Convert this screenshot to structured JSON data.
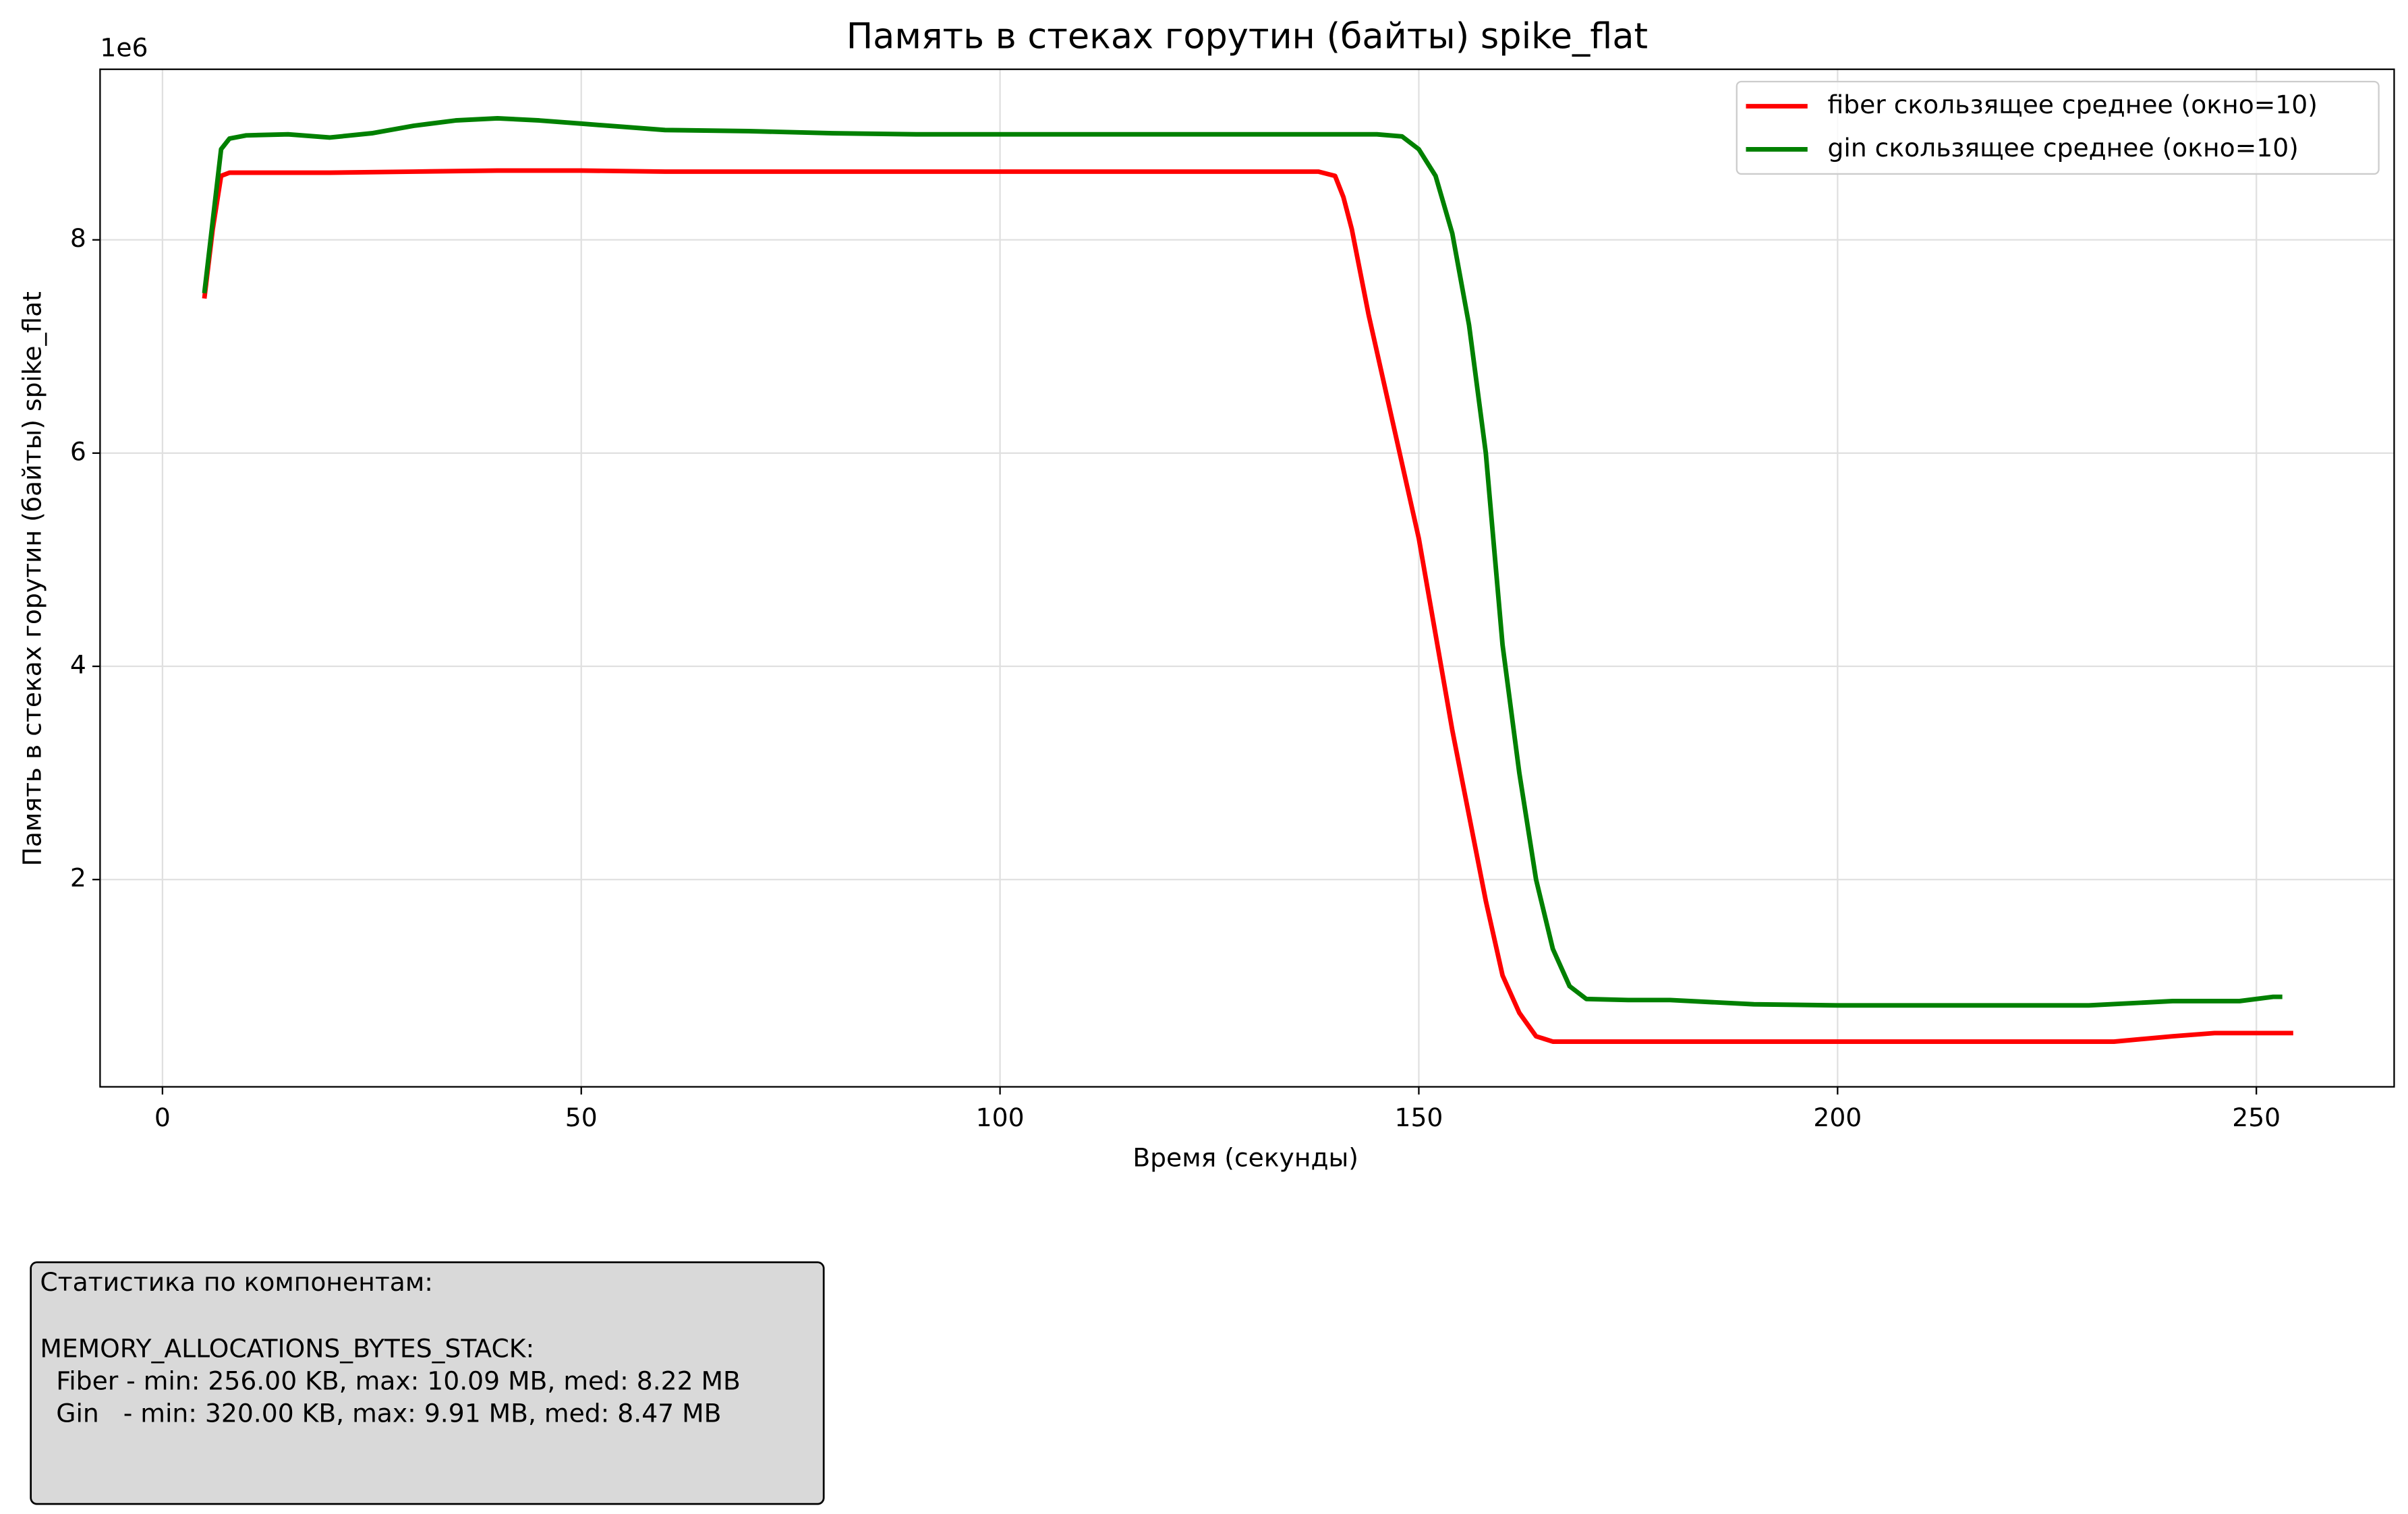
{
  "chart_data": {
    "type": "line",
    "title": "Память в стеках горутин (байты) spike_flat",
    "x_label": "Время (секунды)",
    "y_label": "Память в стеках горутин (байты) spike_flat",
    "y_offset_label": "1e6",
    "xlim": [
      -7.45,
      266.45
    ],
    "ylim": [
      0.056,
      9.6
    ],
    "xticks": [
      0,
      50,
      100,
      150,
      200,
      250
    ],
    "yticks": [
      2,
      4,
      6,
      8
    ],
    "grid": true,
    "legend": "upper right",
    "series": [
      {
        "name": "fiber скользящее среднее (окно=10)",
        "color": "#ff0000",
        "x": [
          5,
          6,
          7,
          8,
          10,
          20,
          30,
          40,
          50,
          60,
          100,
          138,
          140,
          141,
          142,
          144,
          146,
          148,
          150,
          152,
          154,
          156,
          158,
          160,
          162,
          164,
          166,
          180,
          200,
          220,
          233,
          240,
          245,
          254.4
        ],
        "values": [
          7.45,
          8.1,
          8.6,
          8.63,
          8.63,
          8.63,
          8.64,
          8.65,
          8.65,
          8.64,
          8.64,
          8.64,
          8.6,
          8.4,
          8.1,
          7.3,
          6.6,
          5.9,
          5.2,
          4.3,
          3.4,
          2.6,
          1.8,
          1.1,
          0.75,
          0.53,
          0.48,
          0.48,
          0.48,
          0.48,
          0.48,
          0.53,
          0.56,
          0.56
        ]
      },
      {
        "name": "gin скользящее среднее (окно=10)",
        "color": "#008000",
        "x": [
          5,
          7,
          8,
          10,
          15,
          20,
          25,
          30,
          35,
          40,
          45,
          50,
          55,
          60,
          70,
          80,
          90,
          145,
          148,
          150,
          152,
          154,
          156,
          158,
          160,
          162,
          164,
          166,
          168,
          170,
          175,
          180,
          185,
          190,
          200,
          220,
          230,
          240,
          248,
          252,
          253.1
        ],
        "values": [
          7.5,
          8.85,
          8.95,
          8.98,
          8.99,
          8.96,
          9.0,
          9.07,
          9.12,
          9.14,
          9.12,
          9.09,
          9.06,
          9.03,
          9.02,
          9.0,
          8.99,
          8.99,
          8.97,
          8.85,
          8.6,
          8.06,
          7.2,
          6.0,
          4.2,
          3.0,
          2.0,
          1.35,
          1.0,
          0.88,
          0.87,
          0.87,
          0.85,
          0.83,
          0.82,
          0.82,
          0.82,
          0.86,
          0.86,
          0.9,
          0.9
        ]
      }
    ]
  },
  "stats_box": {
    "lines": [
      "Статистика по компонентам:",
      "MEMORY_ALLOCATIONS_BYTES_STACK:",
      "  Fiber - min: 256.00 KB, max: 10.09 MB, med: 8.22 MB",
      "  Gin   - min: 320.00 KB, max: 9.91 MB, med: 8.47 MB"
    ]
  }
}
